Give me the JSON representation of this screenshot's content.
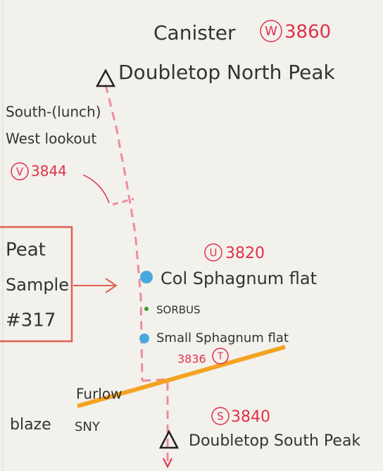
{
  "north_peak": {
    "label": "Doubletop North Peak",
    "feature": "Canister",
    "waypoint": "W",
    "elevation": "3860"
  },
  "lookout": {
    "label_line1": "South-(lunch)",
    "label_line2": "West lookout",
    "waypoint": "V",
    "elevation": "3844"
  },
  "sample": {
    "line1": "Peat",
    "line2": "Sample",
    "line3": "#317"
  },
  "col": {
    "label": "Col Sphagnum flat",
    "waypoint": "U",
    "elevation": "3820"
  },
  "sorbus": {
    "label": "SORBUS"
  },
  "small_flat": {
    "label": "Small Sphagnum flat"
  },
  "junction": {
    "waypoint": "T",
    "elevation": "3836"
  },
  "trail": {
    "name": "Furlow",
    "blaze": "blaze",
    "code": "SNY"
  },
  "south_peak": {
    "label": "Doubletop South Peak",
    "waypoint": "S",
    "elevation": "3840"
  }
}
